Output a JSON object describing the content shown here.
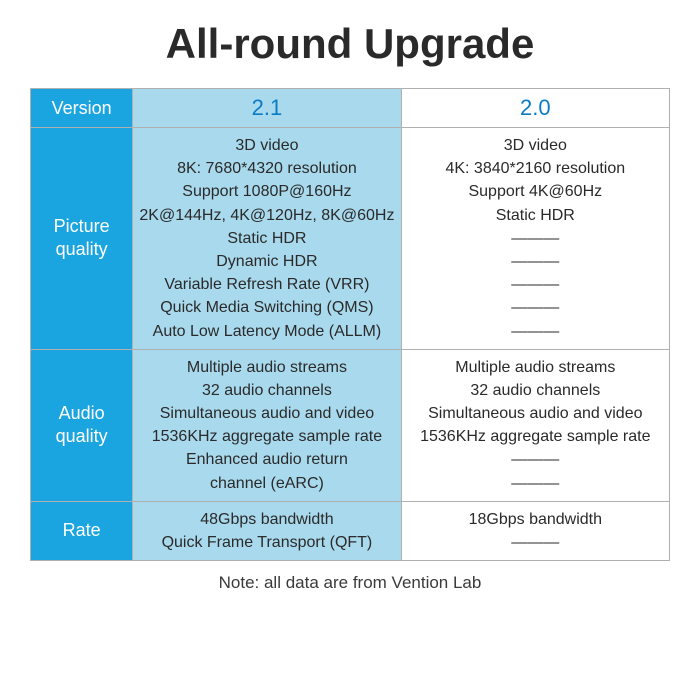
{
  "title": "All-round Upgrade",
  "footnote": "Note: all data are from Vention Lab",
  "colors": {
    "label_bg": "#1ba5e0",
    "label_text": "#ffffff",
    "v21_bg": "#a9d9ed",
    "v20_bg": "#ffffff",
    "header_value_text": "#0a7cc5",
    "cell_text": "#2a2a2a",
    "border": "#b0b0b0",
    "title_text": "#2a2a2a"
  },
  "typography": {
    "title_fontsize": 42,
    "header_label_fontsize": 18,
    "header_value_fontsize": 22,
    "row_label_fontsize": 18,
    "cell_fontsize": 16,
    "footnote_fontsize": 17
  },
  "table": {
    "header": {
      "label": "Version",
      "v21": "2.1",
      "v20": "2.0"
    },
    "rows": [
      {
        "label": "Picture\nquality",
        "v21": [
          "3D video",
          "8K: 7680*4320 resolution",
          "Support 1080P@160Hz",
          "2K@144Hz, 4K@120Hz, 8K@60Hz",
          "Static HDR",
          "Dynamic HDR",
          "Variable Refresh Rate (VRR)",
          "Quick Media Switching (QMS)",
          "Auto Low Latency Mode (ALLM)"
        ],
        "v20": [
          "3D video",
          "4K: 3840*2160 resolution",
          "Support 4K@60Hz",
          "Static HDR",
          "———",
          "———",
          "———",
          "———",
          "———"
        ]
      },
      {
        "label": "Audio\nquality",
        "v21": [
          "Multiple audio streams",
          "32 audio channels",
          "Simultaneous audio and video",
          "1536KHz aggregate sample rate",
          "Enhanced audio return",
          "channel (eARC)"
        ],
        "v20": [
          "Multiple audio streams",
          "32 audio channels",
          "Simultaneous audio and video",
          "1536KHz aggregate sample rate",
          "———",
          "———"
        ]
      },
      {
        "label": "Rate",
        "v21": [
          "48Gbps bandwidth",
          "Quick Frame Transport (QFT)"
        ],
        "v20": [
          "18Gbps bandwidth",
          "———"
        ]
      }
    ]
  }
}
